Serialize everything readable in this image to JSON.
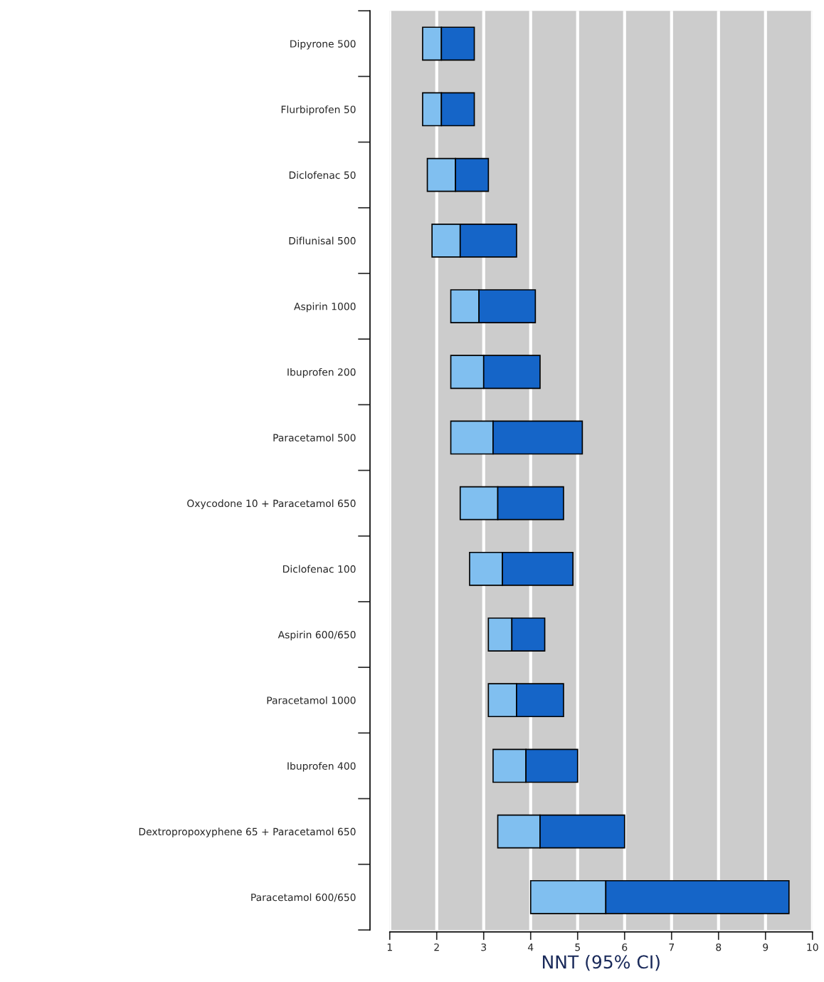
{
  "chart_data": {
    "type": "bar",
    "orientation": "horizontal",
    "xlabel": "NNT (95% CI)",
    "categories": [
      "Dipyrone 500",
      "Flurbiprofen 50",
      "Diclofenac 50",
      "Diflunisal 500",
      "Aspirin 1000",
      "Ibuprofen 200",
      "Paracetamol 500",
      "Oxycodone 10 + Paracetamol 650",
      "Diclofenac 100",
      "Aspirin 600/650",
      "Paracetamol 1000",
      "Ibuprofen 400",
      "Dextropropoxyphene 65 + Paracetamol 650",
      "Paracetamol 600/650"
    ],
    "series": [
      {
        "color": "#80bff0",
        "base": [
          1.7,
          1.7,
          1.8,
          1.9,
          2.3,
          2.3,
          2.3,
          2.5,
          2.7,
          3.1,
          3.1,
          3.2,
          3.3,
          4.0
        ],
        "values": [
          0.4,
          0.4,
          0.6,
          0.6,
          0.6,
          0.7,
          0.9,
          0.8,
          0.7,
          0.5,
          0.6,
          0.7,
          0.9,
          1.6
        ]
      },
      {
        "color": "#1565c8",
        "base": [
          2.1,
          2.1,
          2.4,
          2.5,
          2.9,
          3.0,
          3.2,
          3.3,
          3.4,
          3.6,
          3.7,
          3.9,
          4.2,
          5.6
        ],
        "values": [
          0.7,
          0.7,
          0.7,
          1.2,
          1.2,
          1.2,
          1.9,
          1.4,
          1.5,
          0.7,
          1.0,
          1.1,
          1.8,
          3.9
        ]
      }
    ],
    "xlim": [
      1,
      10
    ],
    "xticks": [
      1,
      2,
      3,
      4,
      5,
      6,
      7,
      8,
      9,
      10
    ],
    "grid": "x"
  }
}
